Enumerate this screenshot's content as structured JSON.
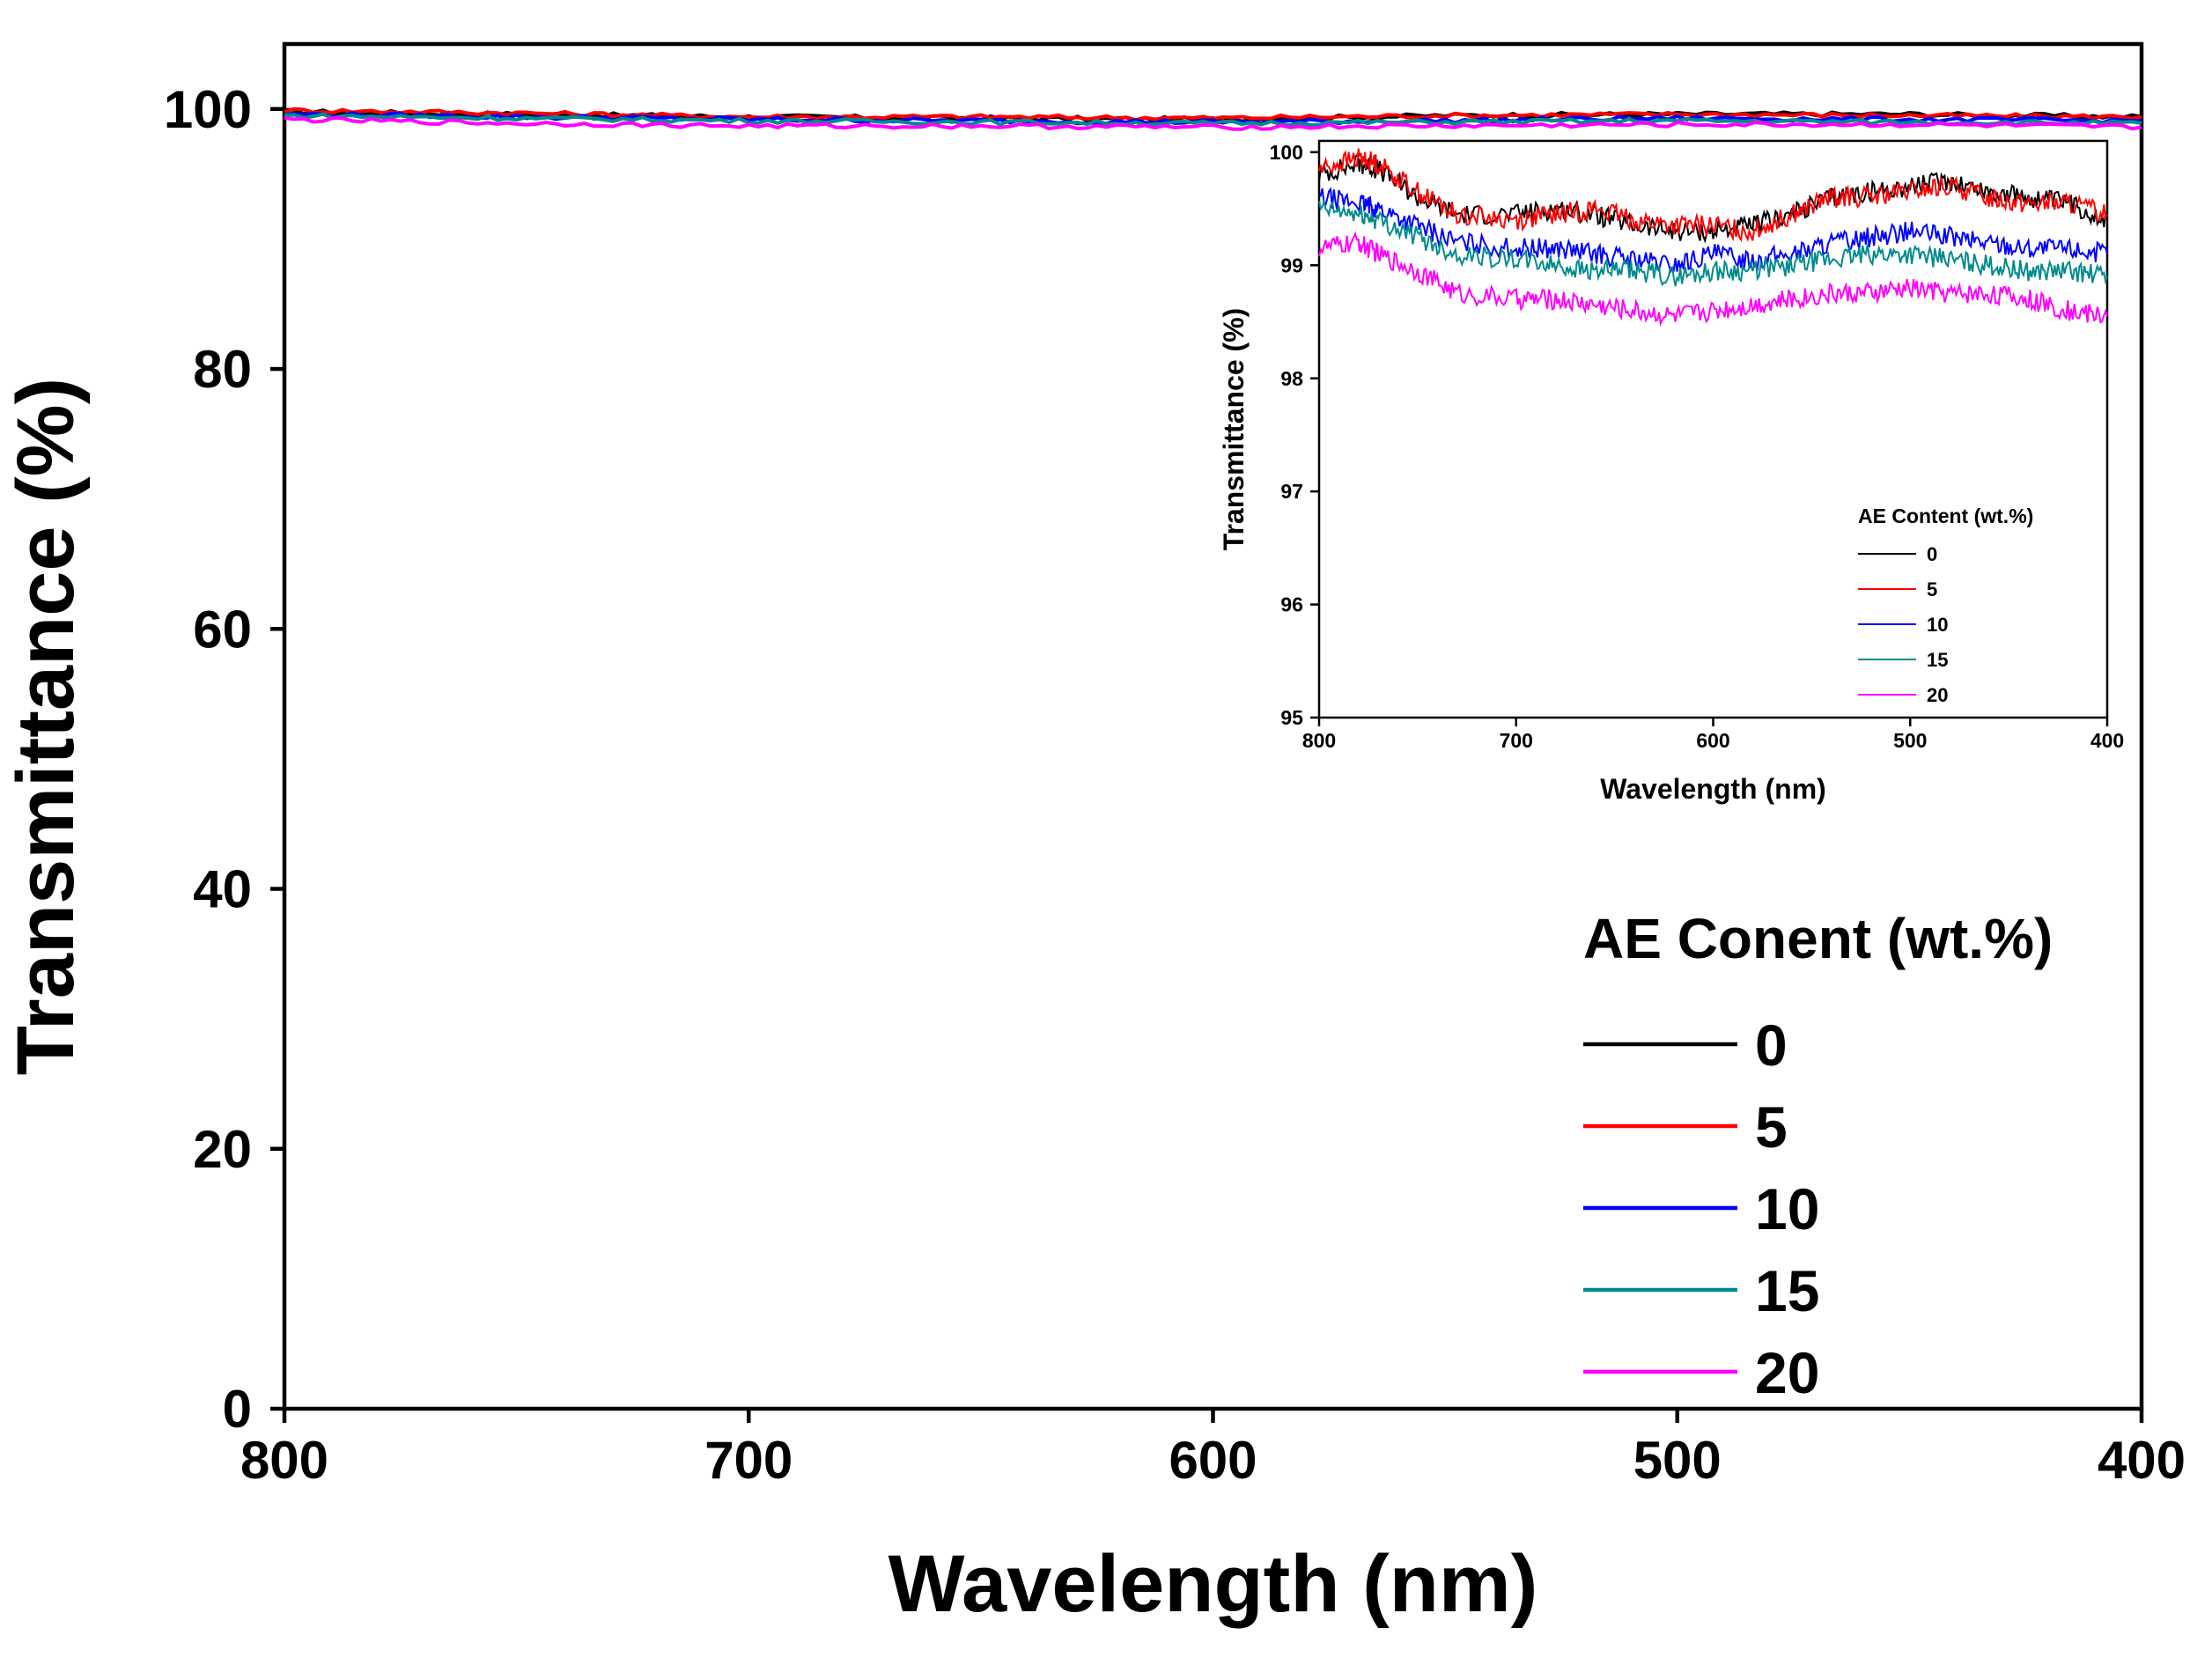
{
  "chart_data": [
    {
      "id": "main",
      "type": "line",
      "title": "",
      "xlabel": "Wavelength (nm)",
      "ylabel": "Transmittance (%)",
      "xlim": [
        800,
        400
      ],
      "ylim": [
        0,
        105
      ],
      "x_reversed": true,
      "xticks": [
        800,
        700,
        600,
        500,
        400
      ],
      "yticks": [
        0,
        20,
        40,
        60,
        80,
        100
      ],
      "legend_title": "AE Conent (wt.%)",
      "legend_position": "bottom-right",
      "series": [
        {
          "name": "0",
          "color": "#000000",
          "x": [
            800,
            750,
            700,
            650,
            600,
            550,
            500,
            450,
            400
          ],
          "y": [
            99.8,
            99.6,
            99.4,
            99.3,
            99.2,
            99.5,
            99.6,
            99.6,
            99.4
          ]
        },
        {
          "name": "5",
          "color": "#ff0000",
          "x": [
            800,
            750,
            700,
            650,
            600,
            550,
            500,
            450,
            400
          ],
          "y": [
            99.9,
            99.7,
            99.4,
            99.4,
            99.3,
            99.5,
            99.6,
            99.5,
            99.4
          ]
        },
        {
          "name": "10",
          "color": "#0000ff",
          "x": [
            800,
            750,
            700,
            650,
            600,
            550,
            500,
            450,
            400
          ],
          "y": [
            99.6,
            99.4,
            99.2,
            99.1,
            99.0,
            99.1,
            99.3,
            99.2,
            99.1
          ]
        },
        {
          "name": "15",
          "color": "#008b8b",
          "x": [
            800,
            750,
            700,
            650,
            600,
            550,
            500,
            450,
            400
          ],
          "y": [
            99.5,
            99.3,
            99.1,
            99.0,
            98.9,
            99.0,
            99.1,
            99.0,
            98.9
          ]
        },
        {
          "name": "20",
          "color": "#ff00ff",
          "x": [
            800,
            750,
            700,
            650,
            600,
            550,
            500,
            450,
            400
          ],
          "y": [
            99.2,
            98.9,
            98.7,
            98.7,
            98.6,
            98.7,
            98.8,
            98.8,
            98.6
          ]
        }
      ]
    },
    {
      "id": "inset",
      "type": "line",
      "title": "",
      "xlabel": "Wavelength (nm)",
      "ylabel": "Transmittance (%)",
      "xlim": [
        800,
        400
      ],
      "ylim": [
        95,
        100.1
      ],
      "x_reversed": true,
      "xticks": [
        800,
        700,
        600,
        500,
        400
      ],
      "yticks": [
        95,
        96,
        97,
        98,
        99,
        100
      ],
      "legend_title": "AE Content (wt.%)",
      "legend_position": "bottom-right",
      "series": [
        {
          "name": "0",
          "color": "#000000",
          "x": [
            800,
            780,
            770,
            750,
            730,
            700,
            680,
            660,
            640,
            620,
            600,
            580,
            560,
            540,
            520,
            500,
            480,
            460,
            440,
            420,
            400
          ],
          "y": [
            99.8,
            99.9,
            99.85,
            99.6,
            99.45,
            99.45,
            99.5,
            99.45,
            99.35,
            99.3,
            99.3,
            99.35,
            99.45,
            99.6,
            99.65,
            99.7,
            99.75,
            99.65,
            99.6,
            99.55,
            99.4
          ]
        },
        {
          "name": "5",
          "color": "#ff0000",
          "x": [
            800,
            780,
            770,
            750,
            730,
            700,
            680,
            660,
            640,
            620,
            600,
            580,
            560,
            540,
            520,
            500,
            480,
            460,
            440,
            420,
            400
          ],
          "y": [
            99.85,
            99.95,
            99.9,
            99.65,
            99.45,
            99.4,
            99.45,
            99.5,
            99.4,
            99.35,
            99.35,
            99.3,
            99.45,
            99.6,
            99.6,
            99.65,
            99.7,
            99.6,
            99.55,
            99.55,
            99.45
          ]
        },
        {
          "name": "10",
          "color": "#0000ff",
          "x": [
            800,
            780,
            770,
            750,
            730,
            700,
            680,
            660,
            640,
            620,
            600,
            580,
            560,
            540,
            520,
            500,
            480,
            460,
            440,
            420,
            400
          ],
          "y": [
            99.6,
            99.55,
            99.5,
            99.35,
            99.2,
            99.15,
            99.15,
            99.1,
            99.05,
            99.0,
            99.1,
            99.05,
            99.1,
            99.2,
            99.25,
            99.3,
            99.25,
            99.2,
            99.15,
            99.15,
            99.1
          ]
        },
        {
          "name": "15",
          "color": "#008b8b",
          "x": [
            800,
            780,
            770,
            750,
            730,
            700,
            680,
            660,
            640,
            620,
            600,
            580,
            560,
            540,
            520,
            500,
            480,
            460,
            440,
            420,
            400
          ],
          "y": [
            99.5,
            99.45,
            99.4,
            99.25,
            99.1,
            99.05,
            99.0,
            98.95,
            98.95,
            98.9,
            98.95,
            98.95,
            99.0,
            99.05,
            99.1,
            99.1,
            99.05,
            99.0,
            98.95,
            98.95,
            98.9
          ]
        },
        {
          "name": "20",
          "color": "#ff00ff",
          "x": [
            800,
            780,
            770,
            750,
            730,
            700,
            680,
            660,
            640,
            620,
            600,
            580,
            560,
            540,
            520,
            500,
            480,
            460,
            440,
            420,
            400
          ],
          "y": [
            99.15,
            99.2,
            99.1,
            98.95,
            98.75,
            98.7,
            98.7,
            98.65,
            98.6,
            98.55,
            98.6,
            98.65,
            98.7,
            98.75,
            98.75,
            98.8,
            98.75,
            98.75,
            98.7,
            98.6,
            98.55
          ]
        }
      ]
    }
  ]
}
